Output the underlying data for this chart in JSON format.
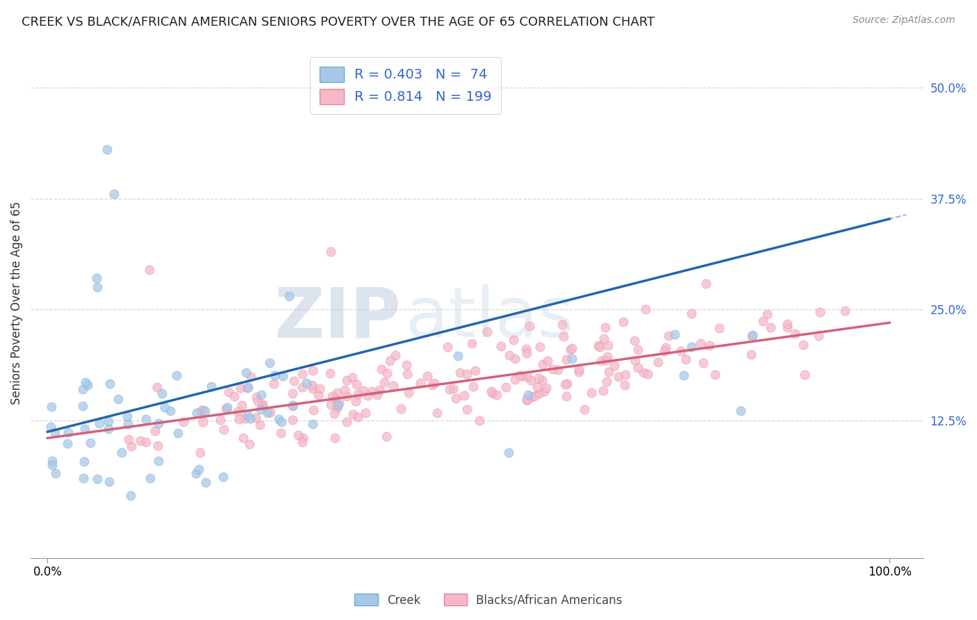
{
  "title": "CREEK VS BLACK/AFRICAN AMERICAN SENIORS POVERTY OVER THE AGE OF 65 CORRELATION CHART",
  "source": "Source: ZipAtlas.com",
  "ylabel": "Seniors Poverty Over the Age of 65",
  "xlabel": "",
  "creek_R": 0.403,
  "creek_N": 74,
  "black_R": 0.814,
  "black_N": 199,
  "creek_color": "#a8c8e8",
  "creek_edge_color": "#6aaad4",
  "creek_line_color": "#2166ac",
  "black_color": "#f5b8c8",
  "black_edge_color": "#e8809a",
  "black_line_color": "#d4607a",
  "dashed_line_color": "#8aabe0",
  "legend_text_color": "#3366cc",
  "background_color": "#ffffff",
  "grid_color": "#cccccc",
  "watermark_zip_color": "#c5d5e8",
  "watermark_atlas_color": "#d0dff0",
  "title_fontsize": 13,
  "source_fontsize": 10,
  "axis_label_color": "#3366cc",
  "ytick_values": [
    0.125,
    0.25,
    0.375,
    0.5
  ],
  "ytick_labels": [
    "12.5%",
    "25.0%",
    "37.5%",
    "50.0%"
  ]
}
